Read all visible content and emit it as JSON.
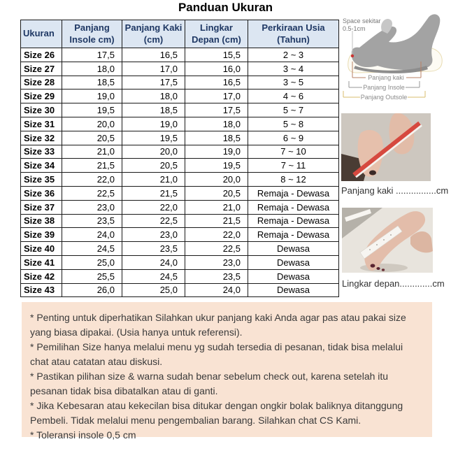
{
  "title": "Panduan Ukuran",
  "table": {
    "headers": [
      {
        "line1": "Ukuran",
        "line2": ""
      },
      {
        "line1": "Panjang",
        "line2": "Insole cm)"
      },
      {
        "line1": "Panjang Kaki",
        "line2": "(cm)"
      },
      {
        "line1": "Lingkar",
        "line2": "Depan (cm)"
      },
      {
        "line1": "Perkiraan Usia",
        "line2": "(Tahun)"
      }
    ],
    "rows": [
      {
        "size": "Size 26",
        "insole": "17,5",
        "kaki": "16,5",
        "lingkar": "15,5",
        "usia": "2 ~ 3"
      },
      {
        "size": "Size 27",
        "insole": "18,0",
        "kaki": "17,0",
        "lingkar": "16,0",
        "usia": "3 ~ 4"
      },
      {
        "size": "Size 28",
        "insole": "18,5",
        "kaki": "17,5",
        "lingkar": "16,5",
        "usia": "3 ~ 5"
      },
      {
        "size": "Size 29",
        "insole": "19,0",
        "kaki": "18,0",
        "lingkar": "17,0",
        "usia": "4 ~ 6"
      },
      {
        "size": "Size 30",
        "insole": "19,5",
        "kaki": "18,5",
        "lingkar": "17,5",
        "usia": "5 ~ 7"
      },
      {
        "size": "Size 31",
        "insole": "20,0",
        "kaki": "19,0",
        "lingkar": "18,0",
        "usia": "5 ~ 8"
      },
      {
        "size": "Size 32",
        "insole": "20,5",
        "kaki": "19,5",
        "lingkar": "18,5",
        "usia": "6 ~ 9"
      },
      {
        "size": "Size 33",
        "insole": "21,0",
        "kaki": "20,0",
        "lingkar": "19,0",
        "usia": "7 ~ 10"
      },
      {
        "size": "Size 34",
        "insole": "21,5",
        "kaki": "20,5",
        "lingkar": "19,5",
        "usia": "7 ~ 11"
      },
      {
        "size": "Size 35",
        "insole": "22,0",
        "kaki": "21,0",
        "lingkar": "20,0",
        "usia": "8 ~ 12"
      },
      {
        "size": "Size 36",
        "insole": "22,5",
        "kaki": "21,5",
        "lingkar": "20,5",
        "usia": "Remaja - Dewasa"
      },
      {
        "size": "Size 37",
        "insole": "23,0",
        "kaki": "22,0",
        "lingkar": "21,0",
        "usia": "Remaja - Dewasa"
      },
      {
        "size": "Size 38",
        "insole": "23,5",
        "kaki": "22,5",
        "lingkar": "21,5",
        "usia": "Remaja - Dewasa"
      },
      {
        "size": "Size 39",
        "insole": "24,0",
        "kaki": "23,0",
        "lingkar": "22,0",
        "usia": "Remaja - Dewasa"
      },
      {
        "size": "Size 40",
        "insole": "24,5",
        "kaki": "23,5",
        "lingkar": "22,5",
        "usia": "Dewasa"
      },
      {
        "size": "Size 41",
        "insole": "25,0",
        "kaki": "24,0",
        "lingkar": "23,0",
        "usia": "Dewasa"
      },
      {
        "size": "Size 42",
        "insole": "25,5",
        "kaki": "24,5",
        "lingkar": "23,5",
        "usia": "Dewasa"
      },
      {
        "size": "Size 43",
        "insole": "26,0",
        "kaki": "25,0",
        "lingkar": "24,0",
        "usia": "Dewasa"
      }
    ]
  },
  "diagram": {
    "space_label_line1": "Space sekitar",
    "space_label_line2": "0.5-1cm",
    "bracket_kaki": "Panjang kaki",
    "bracket_insole": "Panjang Insole",
    "bracket_outsole": "Panjang Outsole"
  },
  "photos": {
    "foot_length_caption": "Panjang kaki ................cm",
    "girth_caption": "Lingkar depan.............cm"
  },
  "notes": [
    "* Penting untuk diperhatikan Silahkan ukur panjang kaki Anda agar pas atau pakai size yang biasa dipakai. (Usia hanya untuk referensi).",
    "* Pemilihan Size hanya melalui menu yg sudah tersedia di pesanan, tidak bisa melalui chat atau catatan atau diskusi.",
    "* Pastikan pilihan size & warna sudah benar sebelum check out, karena setelah itu pesanan tidak bisa dibatalkan atau di ganti.",
    "* Jika Kebesaran atau kekecilan bisa ditukar dengan ongkir bolak baliknya ditanggung Pembeli. Tidak melalui menu pengembalian barang. Silahkan chat CS Kami.",
    "* Toleransi insole 0,5 cm"
  ],
  "colors": {
    "header_background": "#dce6f2",
    "header_text": "#1f3864",
    "table_border": "#1a1a1a",
    "notes_background": "#f9e3d3",
    "ruler_red": "#d6493f",
    "bracket_kaki_color": "#b98065",
    "bracket_insole_color": "#979797",
    "bracket_outsole_color": "#d9bd6d"
  }
}
